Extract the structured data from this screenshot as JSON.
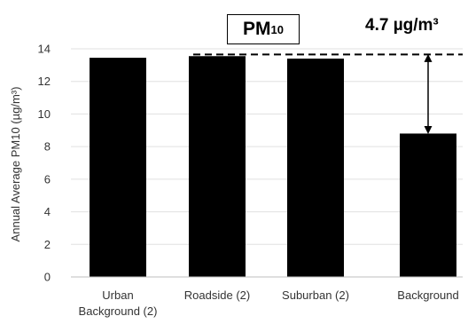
{
  "chart_data": {
    "type": "bar",
    "categories": [
      "Urban Background (2)",
      "Roadside (2)",
      "Suburban (2)",
      "Background"
    ],
    "category_lines": [
      [
        "Urban",
        "Background (2)"
      ],
      [
        "Roadside (2)"
      ],
      [
        "Suburban (2)"
      ],
      [
        "Background"
      ]
    ],
    "values": [
      13.45,
      13.55,
      13.4,
      8.8
    ],
    "ylabel": "Annual Average PM10 (µg/m³)",
    "ylim": [
      0,
      14
    ],
    "yticks": [
      0,
      2,
      4,
      6,
      8,
      10,
      12,
      14
    ],
    "grid": true,
    "bar_color": "#000000",
    "reference_line": {
      "value": 13.65,
      "style": "dashed"
    },
    "annotation": {
      "badge_main": "PM",
      "badge_sub": "10",
      "difference_text": "4.7 µg/m³",
      "arrow_from": 13.65,
      "arrow_to": 8.8
    }
  }
}
